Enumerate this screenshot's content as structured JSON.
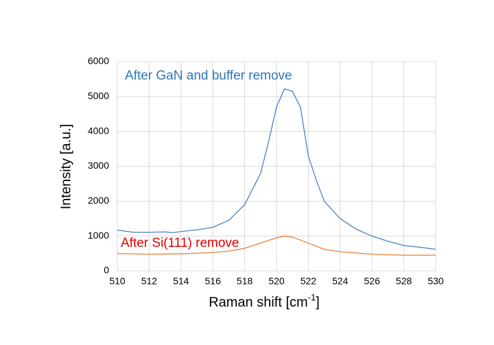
{
  "chart_data": {
    "type": "line",
    "xlabel_parts": [
      "Raman shift [cm",
      "-1",
      "]"
    ],
    "ylabel": "Intensity [a.u.]",
    "xlim": [
      510,
      530
    ],
    "xticks": [
      510,
      512,
      514,
      516,
      518,
      520,
      522,
      524,
      526,
      528,
      530
    ],
    "ylim": [
      0,
      6000
    ],
    "yticks": [
      0,
      1000,
      2000,
      3000,
      4000,
      5000,
      6000
    ],
    "grid": true,
    "series": [
      {
        "name": "After GaN and buffer remove",
        "color": "#4a7fc1",
        "label_color": "#2e75b6",
        "x": [
          510,
          511,
          512,
          513,
          513.5,
          514,
          515,
          516,
          517,
          518,
          519,
          519.5,
          520,
          520.5,
          521,
          521.5,
          522,
          522.5,
          523,
          524,
          525,
          526,
          527,
          528,
          529,
          530
        ],
        "values": [
          1170,
          1110,
          1110,
          1120,
          1100,
          1130,
          1180,
          1250,
          1450,
          1900,
          2800,
          3700,
          4700,
          5220,
          5150,
          4700,
          3300,
          2600,
          2000,
          1500,
          1200,
          1000,
          850,
          730,
          680,
          620
        ]
      },
      {
        "name": "After Si(111) remove",
        "color": "#ed7d31",
        "label_color": "#e00000",
        "x": [
          510,
          512,
          514,
          516,
          517,
          518,
          519,
          520,
          520.5,
          521,
          522,
          523,
          524,
          526,
          528,
          530
        ],
        "values": [
          500,
          480,
          490,
          530,
          570,
          650,
          800,
          950,
          1000,
          970,
          800,
          620,
          550,
          480,
          450,
          450
        ]
      }
    ]
  }
}
